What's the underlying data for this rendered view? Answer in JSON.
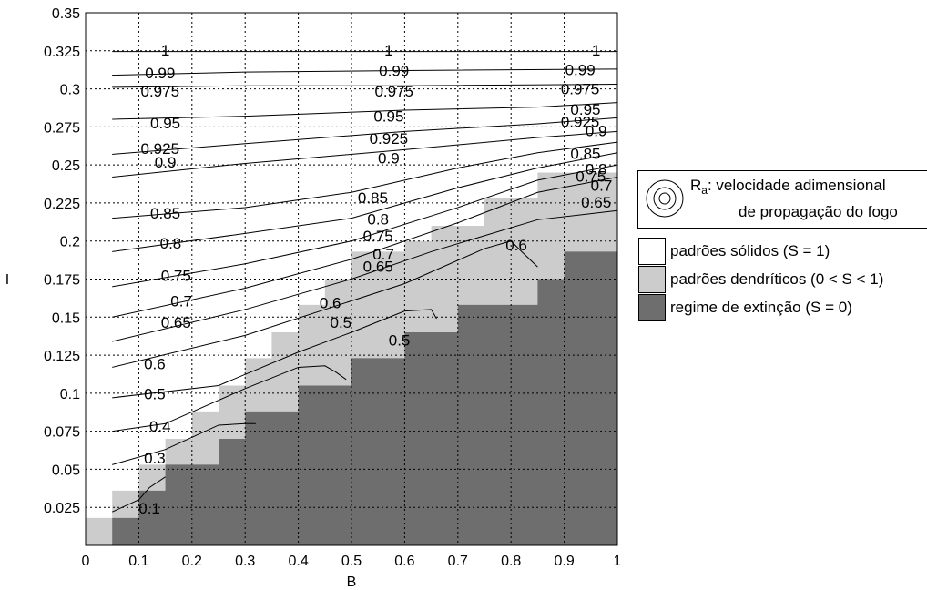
{
  "chart_data": {
    "type": "contour",
    "xlabel": "B",
    "ylabel": "I",
    "xlim": [
      0,
      1
    ],
    "ylim": [
      0,
      0.35
    ],
    "xticks": [
      "0",
      "0.1",
      "0.2",
      "0.3",
      "0.4",
      "0.5",
      "0.6",
      "0.7",
      "0.8",
      "0.9",
      "1"
    ],
    "yticks": [
      "0.025",
      "0.05",
      "0.075",
      "0.1",
      "0.125",
      "0.15",
      "0.175",
      "0.2",
      "0.225",
      "0.25",
      "0.275",
      "0.3",
      "0.325",
      "0.35"
    ],
    "grid": true,
    "regions": {
      "dendritic_upper_boundary": [
        [
          0.0,
          0.018
        ],
        [
          0.05,
          0.018
        ],
        [
          0.05,
          0.036
        ],
        [
          0.1,
          0.036
        ],
        [
          0.1,
          0.053
        ],
        [
          0.15,
          0.053
        ],
        [
          0.15,
          0.07
        ],
        [
          0.2,
          0.07
        ],
        [
          0.2,
          0.088
        ],
        [
          0.25,
          0.088
        ],
        [
          0.25,
          0.105
        ],
        [
          0.3,
          0.105
        ],
        [
          0.3,
          0.123
        ],
        [
          0.35,
          0.123
        ],
        [
          0.35,
          0.14
        ],
        [
          0.4,
          0.14
        ],
        [
          0.4,
          0.158
        ],
        [
          0.45,
          0.158
        ],
        [
          0.45,
          0.175
        ],
        [
          0.5,
          0.175
        ],
        [
          0.5,
          0.193
        ],
        [
          0.6,
          0.193
        ],
        [
          0.6,
          0.2
        ],
        [
          0.65,
          0.2
        ],
        [
          0.65,
          0.21
        ],
        [
          0.75,
          0.21
        ],
        [
          0.75,
          0.228
        ],
        [
          0.85,
          0.228
        ],
        [
          0.85,
          0.245
        ],
        [
          1.0,
          0.245
        ]
      ],
      "extinction_upper_boundary": [
        [
          0.05,
          0.0
        ],
        [
          0.05,
          0.018
        ],
        [
          0.1,
          0.018
        ],
        [
          0.1,
          0.036
        ],
        [
          0.15,
          0.036
        ],
        [
          0.15,
          0.053
        ],
        [
          0.25,
          0.053
        ],
        [
          0.25,
          0.07
        ],
        [
          0.3,
          0.07
        ],
        [
          0.3,
          0.088
        ],
        [
          0.4,
          0.088
        ],
        [
          0.4,
          0.105
        ],
        [
          0.5,
          0.105
        ],
        [
          0.5,
          0.123
        ],
        [
          0.6,
          0.123
        ],
        [
          0.6,
          0.14
        ],
        [
          0.7,
          0.14
        ],
        [
          0.7,
          0.158
        ],
        [
          0.85,
          0.158
        ],
        [
          0.85,
          0.175
        ],
        [
          0.9,
          0.175
        ],
        [
          0.9,
          0.193
        ],
        [
          1.0,
          0.193
        ]
      ]
    },
    "contours": [
      {
        "level": "1",
        "points": [
          [
            0.05,
            0.3245
          ],
          [
            0.5,
            0.3245
          ],
          [
            1.0,
            0.3245
          ]
        ],
        "labels": [
          [
            0.15,
            0.3255
          ],
          [
            0.57,
            0.3255
          ],
          [
            0.96,
            0.3255
          ]
        ]
      },
      {
        "level": "0.99",
        "points": [
          [
            0.05,
            0.309
          ],
          [
            0.3,
            0.311
          ],
          [
            0.6,
            0.312
          ],
          [
            1.0,
            0.313
          ]
        ],
        "labels": [
          [
            0.14,
            0.3105
          ],
          [
            0.58,
            0.312
          ],
          [
            0.93,
            0.3125
          ]
        ]
      },
      {
        "level": "0.975",
        "points": [
          [
            0.05,
            0.301
          ],
          [
            0.3,
            0.302
          ],
          [
            0.6,
            0.302
          ],
          [
            1.0,
            0.303
          ]
        ],
        "labels": [
          [
            0.14,
            0.2985
          ],
          [
            0.58,
            0.2985
          ],
          [
            0.93,
            0.3
          ]
        ]
      },
      {
        "level": "0.95",
        "points": [
          [
            0.05,
            0.28
          ],
          [
            0.3,
            0.282
          ],
          [
            0.6,
            0.286
          ],
          [
            0.85,
            0.288
          ],
          [
            1.0,
            0.291
          ]
        ],
        "labels": [
          [
            0.15,
            0.2775
          ],
          [
            0.57,
            0.282
          ],
          [
            0.94,
            0.2865
          ]
        ]
      },
      {
        "level": "0.925",
        "points": [
          [
            0.05,
            0.257
          ],
          [
            0.3,
            0.264
          ],
          [
            0.6,
            0.272
          ],
          [
            0.85,
            0.277
          ],
          [
            1.0,
            0.281
          ]
        ],
        "labels": [
          [
            0.14,
            0.261
          ],
          [
            0.57,
            0.2675
          ],
          [
            0.93,
            0.2785
          ]
        ]
      },
      {
        "level": "0.9",
        "points": [
          [
            0.05,
            0.242
          ],
          [
            0.3,
            0.251
          ],
          [
            0.6,
            0.26
          ],
          [
            0.85,
            0.268
          ],
          [
            1.0,
            0.272
          ]
        ],
        "labels": [
          [
            0.15,
            0.252
          ],
          [
            0.57,
            0.2545
          ],
          [
            0.96,
            0.2725
          ]
        ]
      },
      {
        "level": "0.85",
        "points": [
          [
            0.05,
            0.215
          ],
          [
            0.3,
            0.222
          ],
          [
            0.5,
            0.232
          ],
          [
            0.7,
            0.248
          ],
          [
            0.85,
            0.258
          ],
          [
            1.0,
            0.265
          ]
        ],
        "labels": [
          [
            0.15,
            0.2185
          ],
          [
            0.54,
            0.2285
          ],
          [
            0.94,
            0.2575
          ]
        ]
      },
      {
        "level": "0.8",
        "points": [
          [
            0.05,
            0.193
          ],
          [
            0.3,
            0.205
          ],
          [
            0.5,
            0.215
          ],
          [
            0.7,
            0.235
          ],
          [
            0.85,
            0.248
          ],
          [
            1.0,
            0.258
          ]
        ],
        "labels": [
          [
            0.16,
            0.1985
          ],
          [
            0.55,
            0.2145
          ],
          [
            0.96,
            0.2475
          ]
        ]
      },
      {
        "level": "0.75",
        "points": [
          [
            0.05,
            0.17
          ],
          [
            0.3,
            0.185
          ],
          [
            0.5,
            0.2
          ],
          [
            0.7,
            0.222
          ],
          [
            0.85,
            0.24
          ],
          [
            1.0,
            0.25
          ]
        ],
        "labels": [
          [
            0.17,
            0.1775
          ],
          [
            0.55,
            0.2035
          ],
          [
            0.95,
            0.2425
          ]
        ]
      },
      {
        "level": "0.7",
        "points": [
          [
            0.05,
            0.15
          ],
          [
            0.3,
            0.169
          ],
          [
            0.5,
            0.188
          ],
          [
            0.7,
            0.212
          ],
          [
            0.85,
            0.232
          ],
          [
            1.0,
            0.242
          ]
        ],
        "labels": [
          [
            0.18,
            0.1605
          ],
          [
            0.56,
            0.1915
          ],
          [
            0.97,
            0.2365
          ]
        ]
      },
      {
        "level": "0.65",
        "points": [
          [
            0.05,
            0.134
          ],
          [
            0.3,
            0.155
          ],
          [
            0.5,
            0.175
          ],
          [
            0.65,
            0.193
          ],
          [
            0.85,
            0.214
          ],
          [
            1.0,
            0.22
          ]
        ],
        "labels": [
          [
            0.17,
            0.1465
          ],
          [
            0.55,
            0.1835
          ],
          [
            0.96,
            0.2255
          ]
        ]
      },
      {
        "level": "0.6",
        "points": [
          [
            0.05,
            0.117
          ],
          [
            0.3,
            0.138
          ],
          [
            0.45,
            0.155
          ],
          [
            0.6,
            0.172
          ],
          [
            0.75,
            0.195
          ],
          [
            0.8,
            0.2
          ],
          [
            0.82,
            0.193
          ],
          [
            0.85,
            0.183
          ]
        ],
        "labels": [
          [
            0.13,
            0.1195
          ],
          [
            0.46,
            0.1595
          ],
          [
            0.81,
            0.1975
          ]
        ]
      },
      {
        "level": "0.5",
        "points": [
          [
            0.05,
            0.097
          ],
          [
            0.25,
            0.105
          ],
          [
            0.4,
            0.127
          ],
          [
            0.5,
            0.14
          ],
          [
            0.6,
            0.154
          ],
          [
            0.65,
            0.155
          ],
          [
            0.66,
            0.149
          ]
        ],
        "labels": [
          [
            0.13,
            0.0995
          ],
          [
            0.48,
            0.1465
          ],
          [
            0.59,
            0.135
          ]
        ]
      },
      {
        "level": "0.4",
        "points": [
          [
            0.05,
            0.075
          ],
          [
            0.15,
            0.08
          ],
          [
            0.3,
            0.103
          ],
          [
            0.4,
            0.117
          ],
          [
            0.45,
            0.118
          ],
          [
            0.47,
            0.114
          ],
          [
            0.49,
            0.109
          ]
        ],
        "labels": [
          [
            0.14,
            0.0785
          ]
        ]
      },
      {
        "level": "0.3",
        "points": [
          [
            0.05,
            0.053
          ],
          [
            0.15,
            0.063
          ],
          [
            0.25,
            0.079
          ],
          [
            0.3,
            0.08
          ],
          [
            0.32,
            0.08
          ]
        ],
        "labels": [
          [
            0.13,
            0.0575
          ]
        ]
      },
      {
        "level": "0.1",
        "points": [
          [
            0.05,
            0.022
          ],
          [
            0.1,
            0.03
          ],
          [
            0.12,
            0.038
          ],
          [
            0.15,
            0.045
          ]
        ],
        "labels": [
          [
            0.12,
            0.0245
          ]
        ]
      }
    ],
    "legend": {
      "placement": "right",
      "contour_entry": {
        "symbol": "R",
        "subscript": "a",
        "line1": ": velocidade adimensional",
        "line2": "de propagação do fogo"
      },
      "regimes": [
        {
          "label": "padrões sólidos (S = 1)",
          "color": "#ffffff"
        },
        {
          "label": "padrões dendríticos (0 < S < 1)",
          "color": "#cccccc"
        },
        {
          "label": "regime de extinção (S = 0)",
          "color": "#6e6e6e"
        }
      ]
    }
  }
}
